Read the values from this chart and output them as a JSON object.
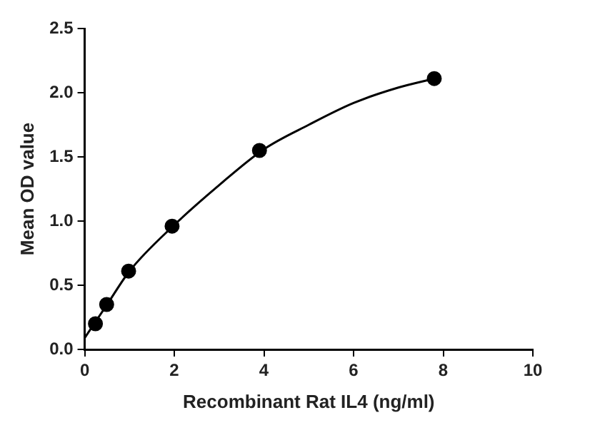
{
  "chart_data": {
    "type": "scatter",
    "xlabel": "Recombinant Rat IL4 (ng/ml)",
    "ylabel": "Mean OD value",
    "x": [
      0.24,
      0.49,
      0.98,
      1.95,
      3.9,
      7.8
    ],
    "series": [
      {
        "color": "#000000",
        "marker": "circle",
        "values": [
          0.2,
          0.35,
          0.61,
          0.96,
          1.55,
          2.11
        ]
      },
      {
        "type": "line",
        "color": "#000000",
        "marker": "none",
        "x": [
          0,
          0.5,
          1,
          2,
          3,
          4,
          5,
          6,
          7,
          7.8
        ],
        "values": [
          0.09,
          0.35,
          0.61,
          0.97,
          1.28,
          1.56,
          1.75,
          1.92,
          2.04,
          2.11
        ]
      }
    ],
    "xlim": [
      0,
      10
    ],
    "xticks": [
      0,
      2,
      4,
      6,
      8,
      10
    ],
    "ylim": [
      0,
      2.5
    ],
    "yticks": [
      {
        "value": 0,
        "label": "0.0"
      },
      0.5,
      {
        "value": 1,
        "label": "1.0"
      },
      {
        "value": 1.5,
        "label": "1.5"
      },
      {
        "value": 2.0,
        "label": "2.0"
      },
      {
        "value": 2.5,
        "label": "2.5"
      }
    ],
    "grid": false,
    "legend": false
  }
}
